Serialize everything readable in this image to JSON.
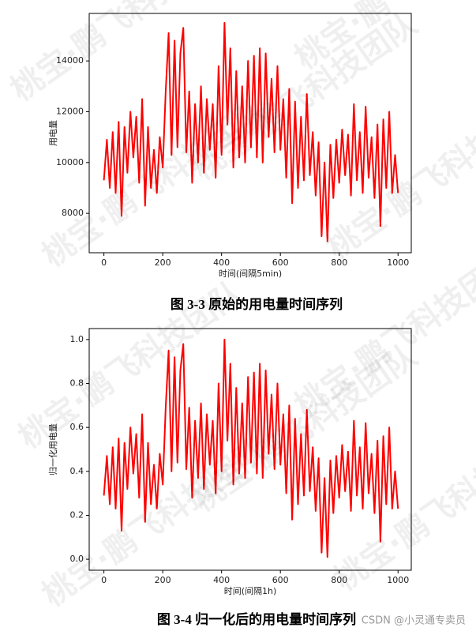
{
  "chart_data": [
    {
      "type": "line",
      "xlabel": "时间(间隔5min)",
      "ylabel": "用电量",
      "x": [
        0,
        10,
        20,
        30,
        40,
        50,
        60,
        70,
        80,
        90,
        100,
        110,
        120,
        130,
        140,
        150,
        160,
        170,
        180,
        190,
        200,
        210,
        220,
        230,
        240,
        250,
        260,
        270,
        280,
        290,
        300,
        310,
        320,
        330,
        340,
        350,
        360,
        370,
        380,
        390,
        400,
        410,
        420,
        430,
        440,
        450,
        460,
        470,
        480,
        490,
        500,
        510,
        520,
        530,
        540,
        550,
        560,
        570,
        580,
        590,
        600,
        610,
        620,
        630,
        640,
        650,
        660,
        670,
        680,
        690,
        700,
        710,
        720,
        730,
        740,
        750,
        760,
        770,
        780,
        790,
        800,
        810,
        820,
        830,
        840,
        850,
        860,
        870,
        880,
        890,
        900,
        910,
        920,
        930,
        940,
        950,
        960,
        970,
        980,
        990,
        1000
      ],
      "series": [
        {
          "color": "#ff0000",
          "values": [
            9300,
            10900,
            9000,
            11200,
            8800,
            11600,
            7900,
            11400,
            9600,
            12000,
            10200,
            11800,
            9200,
            12500,
            8300,
            11400,
            9000,
            10500,
            8800,
            11000,
            9800,
            12800,
            15100,
            10300,
            14800,
            10600,
            14300,
            15300,
            10400,
            12800,
            9200,
            12300,
            10000,
            13000,
            9600,
            12500,
            10500,
            12300,
            9400,
            13800,
            10300,
            15500,
            11500,
            14500,
            9800,
            13600,
            10200,
            13000,
            10000,
            14000,
            10600,
            14200,
            10200,
            14500,
            10000,
            14300,
            11000,
            13300,
            10400,
            13800,
            10500,
            12500,
            9400,
            12900,
            8400,
            12400,
            9000,
            11800,
            9300,
            12700,
            9500,
            11200,
            8700,
            10800,
            7100,
            10000,
            6900,
            10700,
            8600,
            10900,
            9200,
            11300,
            9500,
            11100,
            8700,
            12300,
            9300,
            11200,
            8800,
            12200,
            9400,
            11000,
            8600,
            11500,
            7500,
            11700,
            9000,
            12000,
            8800,
            10300,
            8800
          ]
        }
      ],
      "xlim": [
        -50,
        1045
      ],
      "ylim": [
        6450,
        15870
      ],
      "xticks": [
        0,
        200,
        400,
        600,
        800,
        1000
      ],
      "yticks": [
        8000,
        10000,
        12000,
        14000
      ]
    },
    {
      "type": "line",
      "xlabel": "时间(间隔1h)",
      "ylabel": "归一化用电量",
      "x": [
        0,
        10,
        20,
        30,
        40,
        50,
        60,
        70,
        80,
        90,
        100,
        110,
        120,
        130,
        140,
        150,
        160,
        170,
        180,
        190,
        200,
        210,
        220,
        230,
        240,
        250,
        260,
        270,
        280,
        290,
        300,
        310,
        320,
        330,
        340,
        350,
        360,
        370,
        380,
        390,
        400,
        410,
        420,
        430,
        440,
        450,
        460,
        470,
        480,
        490,
        500,
        510,
        520,
        530,
        540,
        550,
        560,
        570,
        580,
        590,
        600,
        610,
        620,
        630,
        640,
        650,
        660,
        670,
        680,
        690,
        700,
        710,
        720,
        730,
        740,
        750,
        760,
        770,
        780,
        790,
        800,
        810,
        820,
        830,
        840,
        850,
        860,
        870,
        880,
        890,
        900,
        910,
        920,
        930,
        940,
        950,
        960,
        970,
        980,
        990,
        1000
      ],
      "series": [
        {
          "color": "#ff0000",
          "values": [
            0.29,
            0.47,
            0.25,
            0.51,
            0.23,
            0.55,
            0.13,
            0.53,
            0.32,
            0.6,
            0.39,
            0.57,
            0.28,
            0.66,
            0.17,
            0.53,
            0.25,
            0.43,
            0.23,
            0.48,
            0.34,
            0.69,
            0.95,
            0.4,
            0.92,
            0.44,
            0.86,
            0.98,
            0.41,
            0.69,
            0.28,
            0.63,
            0.37,
            0.71,
            0.32,
            0.66,
            0.43,
            0.63,
            0.3,
            0.8,
            0.4,
            1.0,
            0.54,
            0.89,
            0.34,
            0.78,
            0.39,
            0.71,
            0.37,
            0.83,
            0.44,
            0.85,
            0.39,
            0.89,
            0.37,
            0.86,
            0.48,
            0.75,
            0.41,
            0.8,
            0.43,
            0.66,
            0.3,
            0.7,
            0.18,
            0.64,
            0.25,
            0.57,
            0.29,
            0.68,
            0.31,
            0.51,
            0.22,
            0.46,
            0.03,
            0.37,
            0.01,
            0.45,
            0.21,
            0.47,
            0.28,
            0.52,
            0.31,
            0.49,
            0.22,
            0.63,
            0.29,
            0.51,
            0.23,
            0.62,
            0.3,
            0.48,
            0.21,
            0.54,
            0.08,
            0.56,
            0.25,
            0.6,
            0.23,
            0.4,
            0.23
          ]
        }
      ],
      "xlim": [
        -50,
        1045
      ],
      "ylim": [
        -0.05,
        1.05
      ],
      "xticks": [
        0,
        200,
        400,
        600,
        800,
        1000
      ],
      "yticks": [
        {
          "value": 0,
          "label": "0.0"
        },
        0.2,
        0.4,
        0.6,
        0.8,
        {
          "value": 1,
          "label": "1.0"
        }
      ]
    }
  ],
  "captions": [
    "图 3-3  原始的用电量时间序列",
    "图 3-4  归一化后的用电量时间序列"
  ],
  "watermark": "桃宝·鹏飞科技团队",
  "credit": "CSDN @小灵通专卖员"
}
